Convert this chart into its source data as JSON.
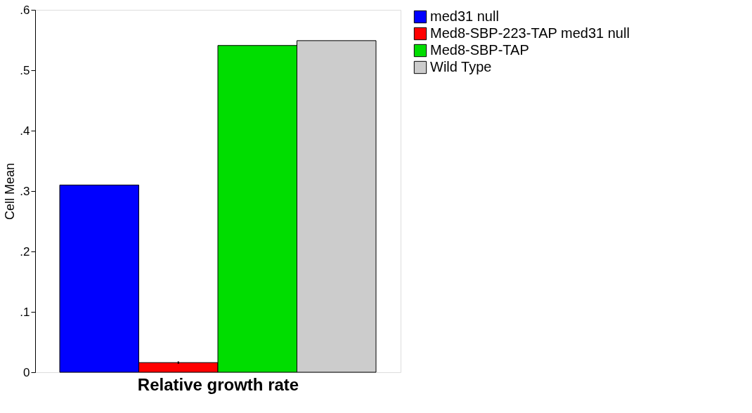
{
  "chart_data": {
    "type": "bar",
    "xlabel": "Relative growth rate",
    "ylabel": "Cell Mean",
    "categories": [
      null
    ],
    "series": [
      {
        "name": "med31 null",
        "color": "#0000ff",
        "values": [
          0.31
        ]
      },
      {
        "name": "Med8-SBP-223-TAP med31 null",
        "color": "#ff0000",
        "values": [
          0.016
        ],
        "errors": [
          0.002
        ]
      },
      {
        "name": "Med8-SBP-TAP",
        "color": "#00dd00",
        "values": [
          0.541
        ]
      },
      {
        "name": "Wild Type",
        "color": "#cccccc",
        "values": [
          0.549
        ]
      }
    ],
    "ylim": [
      0,
      0.6
    ],
    "yticks": [
      0,
      {
        "value": 0.1,
        "label": ".1"
      },
      {
        "value": 0.2,
        "label": ".2"
      },
      {
        "value": 0.3,
        "label": ".3"
      },
      {
        "value": 0.4,
        "label": ".4"
      },
      {
        "value": 0.5,
        "label": ".5"
      },
      {
        "value": 0.6,
        "label": ".6"
      }
    ],
    "grid": false,
    "legend": "right"
  }
}
